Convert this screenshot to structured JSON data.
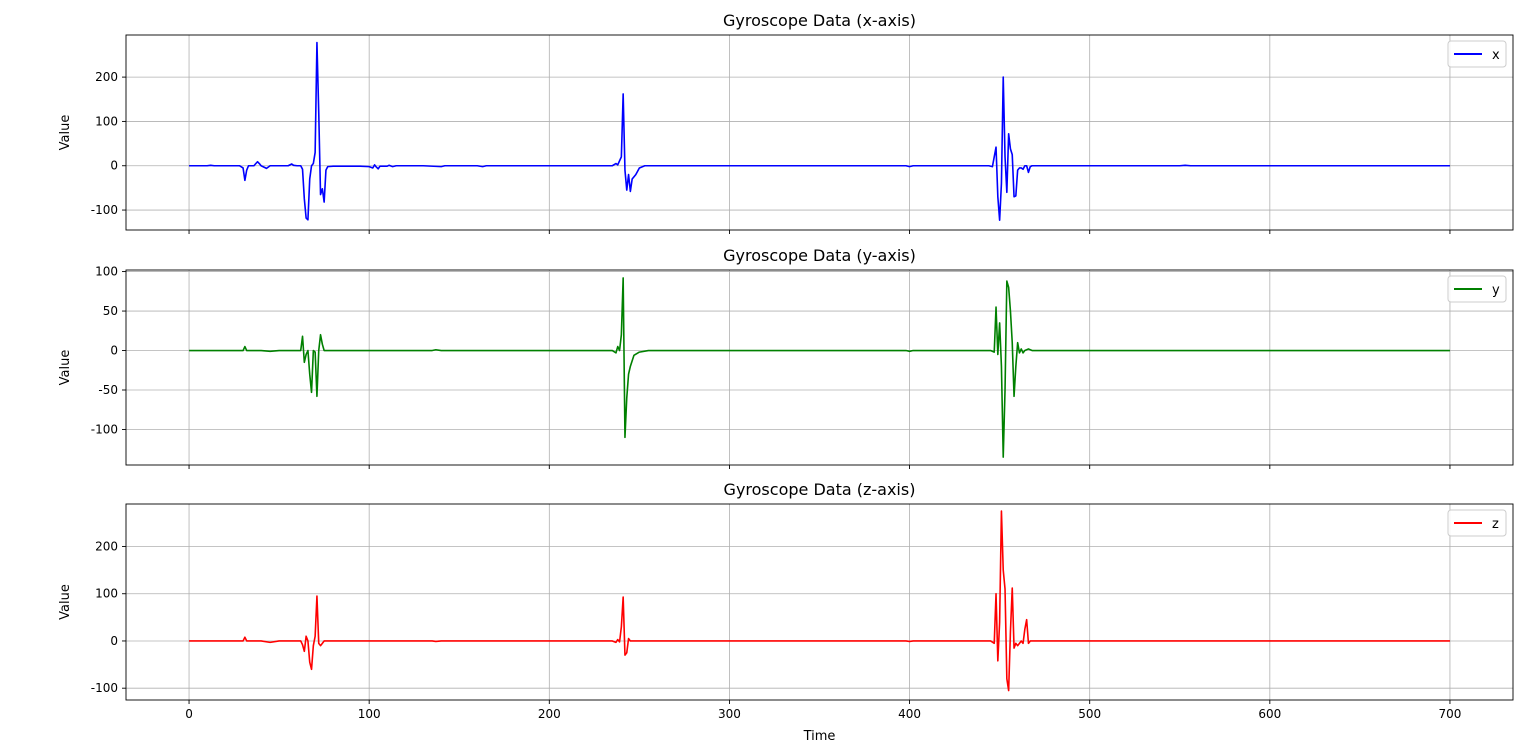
{
  "chart_data": [
    {
      "type": "line",
      "title": "Gyroscope Data (x-axis)",
      "xlabel": "",
      "ylabel": "Value",
      "xlim": [
        -35,
        735
      ],
      "ylim": [
        -145,
        295
      ],
      "yticks": [
        -100,
        0,
        100,
        200
      ],
      "grid": true,
      "legend": "top-right",
      "series": [
        {
          "name": "x",
          "color": "#0000ff",
          "points": [
            [
              0,
              0
            ],
            [
              10,
              0
            ],
            [
              12,
              1
            ],
            [
              14,
              0
            ],
            [
              28,
              0
            ],
            [
              30,
              -5
            ],
            [
              31,
              -33
            ],
            [
              32,
              -10
            ],
            [
              33,
              0
            ],
            [
              36,
              0
            ],
            [
              38,
              9
            ],
            [
              39,
              5
            ],
            [
              40,
              0
            ],
            [
              43,
              -6
            ],
            [
              45,
              0
            ],
            [
              55,
              0
            ],
            [
              57,
              4
            ],
            [
              58,
              1
            ],
            [
              60,
              0
            ],
            [
              62,
              0
            ],
            [
              63,
              -8
            ],
            [
              64,
              -75
            ],
            [
              65,
              -118
            ],
            [
              66,
              -122
            ],
            [
              67,
              -30
            ],
            [
              68,
              0
            ],
            [
              69,
              5
            ],
            [
              70,
              30
            ],
            [
              71,
              278
            ],
            [
              72,
              120
            ],
            [
              73,
              -65
            ],
            [
              74,
              -52
            ],
            [
              75,
              -82
            ],
            [
              76,
              -10
            ],
            [
              77,
              -2
            ],
            [
              80,
              -1
            ],
            [
              95,
              -1
            ],
            [
              100,
              -2
            ],
            [
              102,
              -5
            ],
            [
              103,
              2
            ],
            [
              104,
              -3
            ],
            [
              105,
              -7
            ],
            [
              106,
              -1
            ],
            [
              110,
              -1
            ],
            [
              111,
              1
            ],
            [
              113,
              -2
            ],
            [
              115,
              0
            ],
            [
              130,
              0
            ],
            [
              140,
              -2
            ],
            [
              142,
              0
            ],
            [
              160,
              0
            ],
            [
              163,
              -2
            ],
            [
              165,
              0
            ],
            [
              180,
              0
            ],
            [
              200,
              0
            ],
            [
              220,
              0
            ],
            [
              235,
              0
            ],
            [
              237,
              5
            ],
            [
              238,
              2
            ],
            [
              240,
              20
            ],
            [
              241,
              162
            ],
            [
              242,
              -10
            ],
            [
              243,
              -55
            ],
            [
              244,
              -20
            ],
            [
              245,
              -58
            ],
            [
              246,
              -30
            ],
            [
              248,
              -20
            ],
            [
              250,
              -5
            ],
            [
              253,
              0
            ],
            [
              300,
              0
            ],
            [
              350,
              0
            ],
            [
              398,
              0
            ],
            [
              400,
              -2
            ],
            [
              402,
              0
            ],
            [
              444,
              0
            ],
            [
              446,
              -2
            ],
            [
              447,
              20
            ],
            [
              448,
              42
            ],
            [
              449,
              -70
            ],
            [
              450,
              -123
            ],
            [
              451,
              -40
            ],
            [
              452,
              200
            ],
            [
              453,
              20
            ],
            [
              454,
              -60
            ],
            [
              455,
              72
            ],
            [
              456,
              38
            ],
            [
              457,
              25
            ],
            [
              458,
              -70
            ],
            [
              459,
              -68
            ],
            [
              460,
              -10
            ],
            [
              461,
              -5
            ],
            [
              462,
              -5
            ],
            [
              463,
              -8
            ],
            [
              464,
              0
            ],
            [
              465,
              0
            ],
            [
              466,
              -15
            ],
            [
              467,
              -2
            ],
            [
              468,
              0
            ],
            [
              550,
              0
            ],
            [
              553,
              1
            ],
            [
              556,
              0
            ],
            [
              600,
              0
            ],
            [
              650,
              0
            ],
            [
              700,
              0
            ]
          ]
        }
      ]
    },
    {
      "type": "line",
      "title": "Gyroscope Data (y-axis)",
      "xlabel": "",
      "ylabel": "Value",
      "xlim": [
        -35,
        735
      ],
      "ylim": [
        -145,
        102
      ],
      "yticks": [
        -100,
        -50,
        0,
        50,
        100
      ],
      "grid": true,
      "legend": "top-right",
      "series": [
        {
          "name": "y",
          "color": "#008000",
          "points": [
            [
              0,
              0
            ],
            [
              30,
              0
            ],
            [
              31,
              5
            ],
            [
              32,
              0
            ],
            [
              40,
              0
            ],
            [
              45,
              -1
            ],
            [
              50,
              0
            ],
            [
              62,
              0
            ],
            [
              63,
              18
            ],
            [
              64,
              -15
            ],
            [
              65,
              -5
            ],
            [
              66,
              0
            ],
            [
              67,
              -30
            ],
            [
              68,
              -53
            ],
            [
              69,
              0
            ],
            [
              70,
              -2
            ],
            [
              71,
              -58
            ],
            [
              72,
              0
            ],
            [
              73,
              20
            ],
            [
              74,
              8
            ],
            [
              75,
              0
            ],
            [
              80,
              0
            ],
            [
              135,
              0
            ],
            [
              137,
              1
            ],
            [
              140,
              0
            ],
            [
              160,
              0
            ],
            [
              200,
              0
            ],
            [
              235,
              0
            ],
            [
              237,
              -3
            ],
            [
              238,
              5
            ],
            [
              239,
              0
            ],
            [
              240,
              20
            ],
            [
              241,
              92
            ],
            [
              242,
              -110
            ],
            [
              243,
              -60
            ],
            [
              244,
              -30
            ],
            [
              245,
              -20
            ],
            [
              247,
              -6
            ],
            [
              250,
              -2
            ],
            [
              255,
              0
            ],
            [
              300,
              0
            ],
            [
              350,
              0
            ],
            [
              398,
              0
            ],
            [
              400,
              -1
            ],
            [
              402,
              0
            ],
            [
              445,
              0
            ],
            [
              447,
              -2
            ],
            [
              448,
              55
            ],
            [
              449,
              -5
            ],
            [
              450,
              35
            ],
            [
              451,
              -20
            ],
            [
              452,
              -135
            ],
            [
              453,
              -50
            ],
            [
              454,
              88
            ],
            [
              455,
              80
            ],
            [
              456,
              50
            ],
            [
              457,
              10
            ],
            [
              458,
              -58
            ],
            [
              459,
              -20
            ],
            [
              460,
              10
            ],
            [
              461,
              -3
            ],
            [
              462,
              2
            ],
            [
              463,
              -3
            ],
            [
              464,
              0
            ],
            [
              466,
              2
            ],
            [
              468,
              0
            ],
            [
              500,
              0
            ],
            [
              600,
              0
            ],
            [
              700,
              0
            ]
          ]
        }
      ]
    },
    {
      "type": "line",
      "title": "Gyroscope Data (z-axis)",
      "xlabel": "Time",
      "ylabel": "Value",
      "xlim": [
        -35,
        735
      ],
      "ylim": [
        -125,
        290
      ],
      "yticks": [
        -100,
        0,
        100,
        200
      ],
      "xticks": [
        0,
        100,
        200,
        300,
        400,
        500,
        600,
        700
      ],
      "grid": true,
      "legend": "top-right",
      "series": [
        {
          "name": "z",
          "color": "#ff0000",
          "points": [
            [
              0,
              0
            ],
            [
              30,
              0
            ],
            [
              31,
              8
            ],
            [
              32,
              0
            ],
            [
              40,
              0
            ],
            [
              45,
              -3
            ],
            [
              50,
              0
            ],
            [
              62,
              0
            ],
            [
              63,
              -8
            ],
            [
              64,
              -22
            ],
            [
              65,
              10
            ],
            [
              66,
              0
            ],
            [
              67,
              -45
            ],
            [
              68,
              -60
            ],
            [
              69,
              -10
            ],
            [
              70,
              10
            ],
            [
              71,
              95
            ],
            [
              72,
              -5
            ],
            [
              73,
              -10
            ],
            [
              74,
              -5
            ],
            [
              75,
              0
            ],
            [
              80,
              0
            ],
            [
              135,
              0
            ],
            [
              137,
              -1
            ],
            [
              140,
              0
            ],
            [
              200,
              0
            ],
            [
              235,
              0
            ],
            [
              237,
              -3
            ],
            [
              238,
              3
            ],
            [
              239,
              -2
            ],
            [
              240,
              30
            ],
            [
              241,
              93
            ],
            [
              242,
              -30
            ],
            [
              243,
              -25
            ],
            [
              244,
              5
            ],
            [
              245,
              0
            ],
            [
              250,
              0
            ],
            [
              300,
              0
            ],
            [
              350,
              0
            ],
            [
              398,
              0
            ],
            [
              400,
              -1
            ],
            [
              402,
              0
            ],
            [
              445,
              0
            ],
            [
              447,
              -5
            ],
            [
              448,
              100
            ],
            [
              449,
              -42
            ],
            [
              450,
              40
            ],
            [
              451,
              275
            ],
            [
              452,
              150
            ],
            [
              453,
              110
            ],
            [
              454,
              -80
            ],
            [
              455,
              -105
            ],
            [
              456,
              20
            ],
            [
              457,
              112
            ],
            [
              458,
              -15
            ],
            [
              459,
              -5
            ],
            [
              460,
              -10
            ],
            [
              461,
              -5
            ],
            [
              462,
              0
            ],
            [
              463,
              -5
            ],
            [
              464,
              25
            ],
            [
              465,
              45
            ],
            [
              466,
              -5
            ],
            [
              467,
              0
            ],
            [
              470,
              0
            ],
            [
              500,
              0
            ],
            [
              600,
              0
            ],
            [
              700,
              0
            ]
          ]
        }
      ]
    }
  ]
}
